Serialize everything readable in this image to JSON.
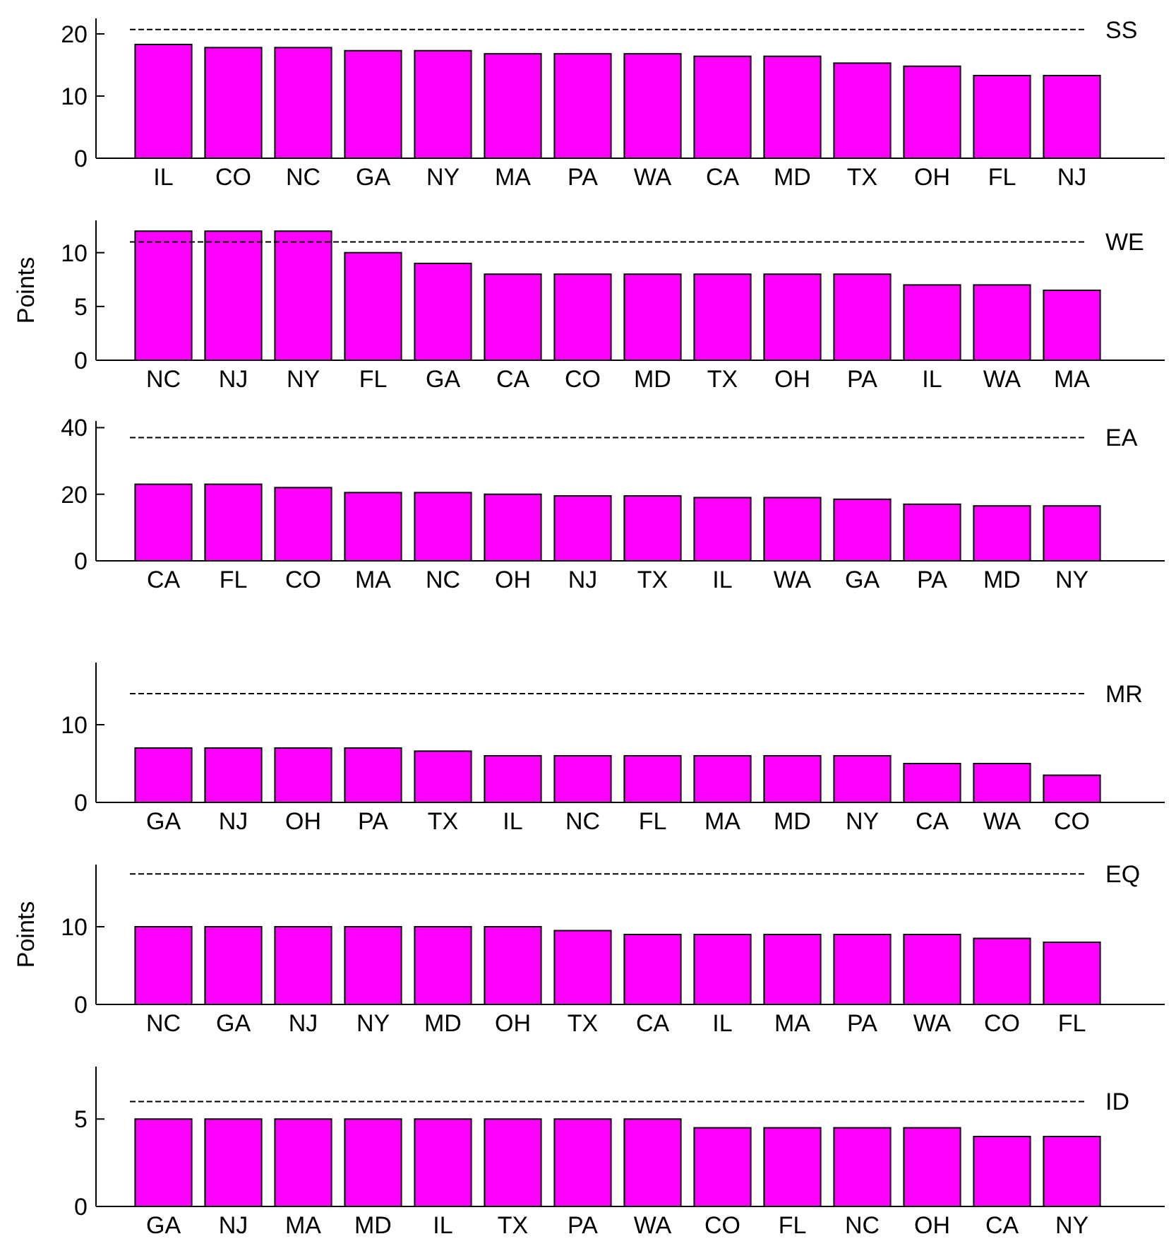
{
  "chart_data": [
    {
      "type": "bar",
      "categories": [
        "IL",
        "CO",
        "NC",
        "GA",
        "NY",
        "MA",
        "PA",
        "WA",
        "CA",
        "MD",
        "TX",
        "OH",
        "FL",
        "NJ"
      ],
      "values": [
        18.3,
        17.8,
        17.8,
        17.3,
        17.3,
        16.8,
        16.8,
        16.8,
        16.4,
        16.4,
        15.3,
        14.8,
        13.3,
        13.3
      ],
      "color": "#ff00ff",
      "ylim": [
        0,
        22.5
      ],
      "yticks": [
        0,
        10,
        20
      ],
      "ref_lines": [
        {
          "axis": "y",
          "value": 20.7,
          "label": "SS",
          "line_style": "dashed"
        }
      ]
    },
    {
      "type": "bar",
      "ylabel": "Points",
      "categories": [
        "NC",
        "NJ",
        "NY",
        "FL",
        "GA",
        "CA",
        "CO",
        "MD",
        "TX",
        "OH",
        "PA",
        "IL",
        "WA",
        "MA"
      ],
      "values": [
        12,
        12,
        12,
        10,
        9,
        8,
        8,
        8,
        8,
        8,
        8,
        7,
        7,
        6.5
      ],
      "color": "#ff00ff",
      "ylim": [
        0,
        13
      ],
      "yticks": [
        0,
        5,
        10
      ],
      "ref_lines": [
        {
          "axis": "y",
          "value": 11,
          "label": "WE",
          "line_style": "dashed"
        }
      ]
    },
    {
      "type": "bar",
      "categories": [
        "CA",
        "FL",
        "CO",
        "MA",
        "NC",
        "OH",
        "NJ",
        "TX",
        "IL",
        "WA",
        "GA",
        "PA",
        "MD",
        "NY"
      ],
      "values": [
        23,
        23,
        22,
        20.5,
        20.5,
        20,
        19.5,
        19.5,
        19,
        19,
        18.5,
        17,
        16.5,
        16.5
      ],
      "color": "#ff00ff",
      "ylim": [
        0,
        42
      ],
      "yticks": [
        0,
        20,
        40
      ],
      "ref_lines": [
        {
          "axis": "y",
          "value": 37,
          "label": "EA",
          "line_style": "dashed"
        }
      ]
    },
    {
      "type": "bar",
      "categories": [
        "GA",
        "NJ",
        "OH",
        "PA",
        "TX",
        "IL",
        "NC",
        "FL",
        "MA",
        "MD",
        "NY",
        "CA",
        "WA",
        "CO"
      ],
      "values": [
        7,
        7,
        7,
        7,
        6.6,
        6,
        6,
        6,
        6,
        6,
        6,
        5,
        5,
        3.5
      ],
      "color": "#ff00ff",
      "ylim": [
        0,
        18
      ],
      "yticks": [
        0,
        10
      ],
      "ref_lines": [
        {
          "axis": "y",
          "value": 14,
          "label": "MR",
          "line_style": "dashed"
        }
      ]
    },
    {
      "type": "bar",
      "ylabel": "Points",
      "categories": [
        "NC",
        "GA",
        "NJ",
        "NY",
        "MD",
        "OH",
        "TX",
        "CA",
        "IL",
        "MA",
        "PA",
        "WA",
        "CO",
        "FL"
      ],
      "values": [
        10,
        10,
        10,
        10,
        10,
        10,
        9.5,
        9,
        9,
        9,
        9,
        9,
        8.5,
        8
      ],
      "color": "#ff00ff",
      "ylim": [
        0,
        18
      ],
      "yticks": [
        0,
        10
      ],
      "ref_lines": [
        {
          "axis": "y",
          "value": 16.8,
          "label": "EQ",
          "line_style": "dashed"
        }
      ]
    },
    {
      "type": "bar",
      "categories": [
        "GA",
        "NJ",
        "MA",
        "MD",
        "IL",
        "TX",
        "PA",
        "WA",
        "CO",
        "FL",
        "NC",
        "OH",
        "CA",
        "NY"
      ],
      "values": [
        5,
        5,
        5,
        5,
        5,
        5,
        5,
        5,
        4.5,
        4.5,
        4.5,
        4.5,
        4,
        4
      ],
      "color": "#ff00ff",
      "ylim": [
        0,
        8
      ],
      "yticks": [
        0,
        5
      ],
      "ref_lines": [
        {
          "axis": "y",
          "value": 6,
          "label": "ID",
          "line_style": "dashed"
        }
      ]
    }
  ]
}
